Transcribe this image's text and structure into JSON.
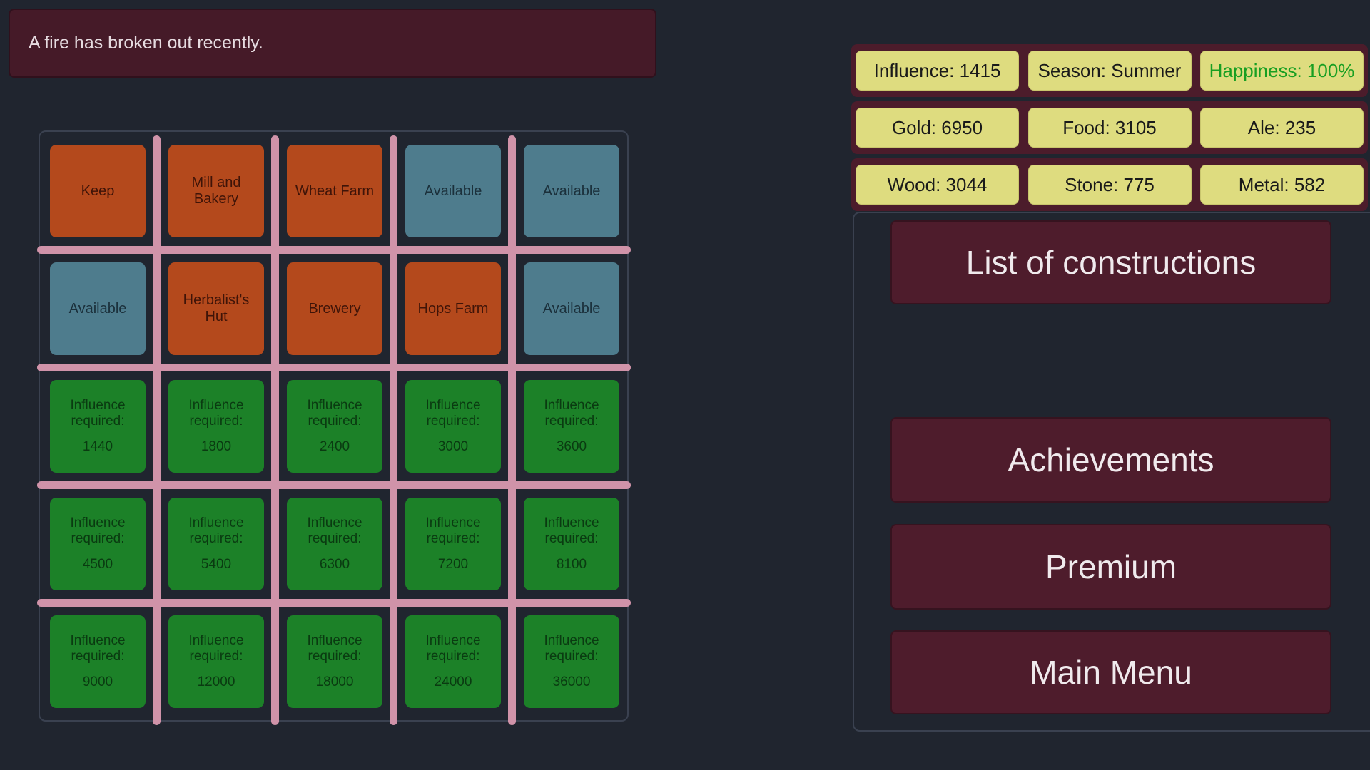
{
  "notification": {
    "text": "A fire has broken out recently."
  },
  "grid": {
    "locked_label": "Influence required:",
    "rows": [
      [
        {
          "type": "building",
          "label": "Keep"
        },
        {
          "type": "building",
          "label": "Mill and Bakery"
        },
        {
          "type": "building",
          "label": "Wheat Farm"
        },
        {
          "type": "available",
          "label": "Available"
        },
        {
          "type": "available",
          "label": "Available"
        }
      ],
      [
        {
          "type": "available",
          "label": "Available"
        },
        {
          "type": "building",
          "label": "Herbalist's Hut"
        },
        {
          "type": "building",
          "label": "Brewery"
        },
        {
          "type": "building",
          "label": "Hops Farm"
        },
        {
          "type": "available",
          "label": "Available"
        }
      ],
      [
        {
          "type": "locked",
          "label": "Influence required:",
          "value": "1440"
        },
        {
          "type": "locked",
          "label": "Influence required:",
          "value": "1800"
        },
        {
          "type": "locked",
          "label": "Influence required:",
          "value": "2400"
        },
        {
          "type": "locked",
          "label": "Influence required:",
          "value": "3000"
        },
        {
          "type": "locked",
          "label": "Influence required:",
          "value": "3600"
        }
      ],
      [
        {
          "type": "locked",
          "label": "Influence required:",
          "value": "4500"
        },
        {
          "type": "locked",
          "label": "Influence required:",
          "value": "5400"
        },
        {
          "type": "locked",
          "label": "Influence required:",
          "value": "6300"
        },
        {
          "type": "locked",
          "label": "Influence required:",
          "value": "7200"
        },
        {
          "type": "locked",
          "label": "Influence required:",
          "value": "8100"
        }
      ],
      [
        {
          "type": "locked",
          "label": "Influence required:",
          "value": "9000"
        },
        {
          "type": "locked",
          "label": "Influence required:",
          "value": "12000"
        },
        {
          "type": "locked",
          "label": "Influence required:",
          "value": "18000"
        },
        {
          "type": "locked",
          "label": "Influence required:",
          "value": "24000"
        },
        {
          "type": "locked",
          "label": "Influence required:",
          "value": "36000"
        }
      ]
    ]
  },
  "stats": {
    "rows": [
      [
        {
          "label": "Influence: 1415"
        },
        {
          "label": "Season: Summer"
        },
        {
          "label": "Happiness: 100%",
          "status_color": "#189f22"
        }
      ],
      [
        {
          "label": "Gold: 6950"
        },
        {
          "label": "Food: 3105"
        },
        {
          "label": "Ale: 235"
        }
      ],
      [
        {
          "label": "Wood: 3044"
        },
        {
          "label": "Stone: 775"
        },
        {
          "label": "Metal: 582"
        }
      ]
    ]
  },
  "menu": {
    "buttons": [
      "List of constructions",
      "Achievements",
      "Premium",
      "Main Menu"
    ]
  },
  "colors": {
    "background": "#20252f",
    "panel_border": "#3a4150",
    "maroon": "#4c1c2b",
    "button_bg": "#4e1c2c",
    "button_border": "#36131f",
    "button_text": "#f0eaed",
    "notification_bg": "#451a28",
    "notification_border": "#30101c",
    "notification_text": "#e6dbe0",
    "badge_bg": "#dedc7f",
    "badge_border": "#c9c66d",
    "badge_text": "#1a1a1a",
    "happiness_green": "#189f22",
    "tile_building": "#b4491c",
    "tile_building_text": "#3f1408",
    "tile_available": "#4e7c8d",
    "tile_available_text": "#1b303b",
    "tile_locked": "#1c8128",
    "tile_locked_text": "#0a3b11",
    "separator_pink": "#d093a9"
  }
}
